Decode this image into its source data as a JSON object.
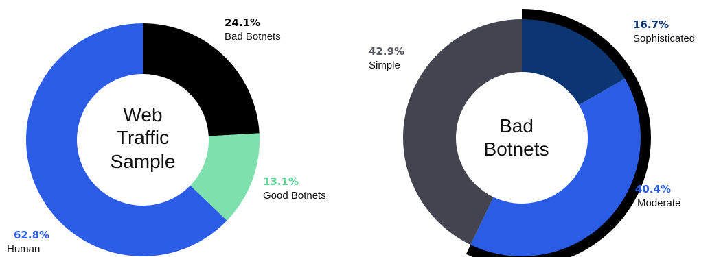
{
  "chart_data": [
    {
      "type": "pie",
      "center_label": [
        "Web",
        "Traffic",
        "Sample"
      ],
      "slices": [
        {
          "label": "Bad Botnets",
          "value": 24.1,
          "value_label": "24.1%",
          "color": "#000000",
          "label_color": "#000000"
        },
        {
          "label": "Good Botnets",
          "value": 13.1,
          "value_label": "13.1%",
          "color": "#7ee0ad",
          "label_color": "#5fd394"
        },
        {
          "label": "Human",
          "value": 62.8,
          "value_label": "62.8%",
          "color": "#2b5ce6",
          "label_color": "#2b5ce6"
        }
      ]
    },
    {
      "type": "pie",
      "center_label": [
        "Bad",
        "Botnets"
      ],
      "highlight_color": "#000000",
      "slices": [
        {
          "label": "Sophisticated",
          "value": 16.7,
          "value_label": "16.7%",
          "color": "#0b3672",
          "label_color": "#0b3672"
        },
        {
          "label": "Moderate",
          "value": 40.4,
          "value_label": "40.4%",
          "color": "#2b5ce6",
          "label_color": "#2b5ce6"
        },
        {
          "label": "Simple",
          "value": 42.9,
          "value_label": "42.9%",
          "color": "#43444f",
          "label_color": "#555660"
        }
      ]
    }
  ]
}
